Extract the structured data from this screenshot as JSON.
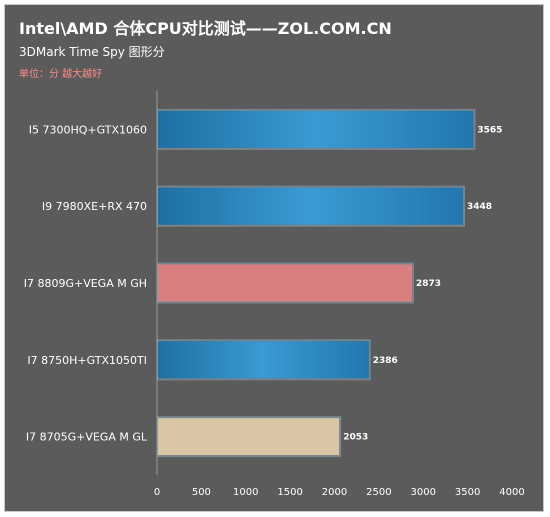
{
  "chart_data": {
    "type": "bar",
    "orientation": "horizontal",
    "title": "Intel\\AMD 合体CPU对比测试——ZOL.COM.CN",
    "subtitle": "3DMark Time Spy 图形分",
    "unit_note": "单位：分 越大越好",
    "categories": [
      "I5 7300HQ+GTX1060",
      "I9 7980XE+RX 470",
      "I7 8809G+VEGA M GH",
      "I7 8750H+GTX1050TI",
      "I7 8705G+VEGA M GL"
    ],
    "values": [
      3565,
      3448,
      2873,
      2386,
      2053
    ],
    "bar_colors": [
      "#2f8cc4",
      "#2f8cc4",
      "#d97f7f",
      "#2f8cc4",
      "#d8c6a6"
    ],
    "xlim": [
      0,
      4000
    ],
    "x_ticks": [
      0,
      500,
      1000,
      1500,
      2000,
      2500,
      3000,
      3500,
      4000
    ],
    "grid": false,
    "legend": "none"
  },
  "colors": {
    "background": "#5b5b5b",
    "text": "#ffffff",
    "unit_note": "#ff8a8a",
    "axis": "#9a9a9a"
  }
}
